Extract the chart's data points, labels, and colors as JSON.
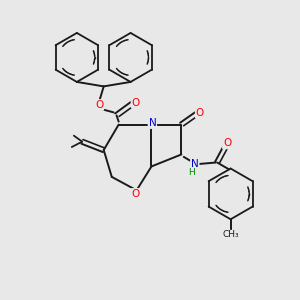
{
  "background_color": "#e8e8e8",
  "bond_color": "#1a1a1a",
  "atom_colors": {
    "O": "#ff0000",
    "N": "#0000cc",
    "H": "#008800",
    "C": "#1a1a1a"
  },
  "figsize": [
    3.0,
    3.0
  ],
  "dpi": 100
}
